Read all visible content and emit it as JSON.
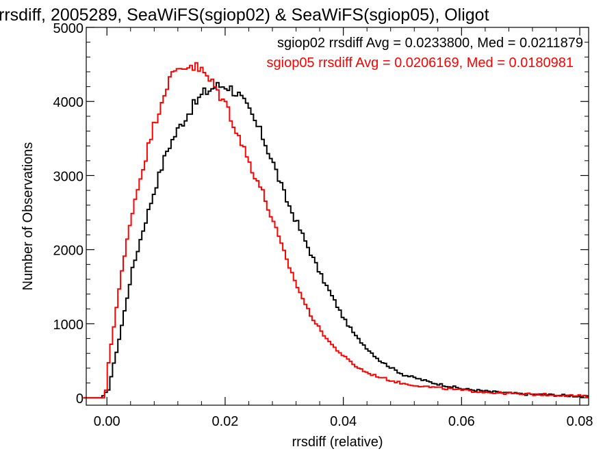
{
  "chart_data": {
    "type": "line",
    "title": "rrsdiff, 2005289, SeaWiFS(sgiop02) & SeaWiFS(sgiop05), Oligot",
    "xlabel": "rrsdiff (relative)",
    "ylabel": "Number of Observations",
    "xlim": [
      -0.0035,
      0.0815
    ],
    "ylim": [
      -100,
      5000
    ],
    "x_ticks": [
      0.0,
      0.02,
      0.04,
      0.06,
      0.08
    ],
    "x_tick_labels": [
      "0.00",
      "0.02",
      "0.04",
      "0.06",
      "0.08"
    ],
    "y_ticks": [
      0,
      1000,
      2000,
      3000,
      4000,
      5000
    ],
    "y_tick_labels": [
      "0",
      "1000",
      "2000",
      "3000",
      "4000",
      "5000"
    ],
    "legend_position": "top-right",
    "series": [
      {
        "name": "sgiop02 rrsdiff Avg = 0.0233800, Med = 0.0211879",
        "color": "#000000",
        "step": "histogram",
        "x": [
          -0.004,
          -0.001,
          0.0,
          0.002,
          0.004,
          0.006,
          0.008,
          0.01,
          0.012,
          0.014,
          0.016,
          0.018,
          0.02,
          0.022,
          0.024,
          0.026,
          0.028,
          0.03,
          0.032,
          0.034,
          0.036,
          0.038,
          0.04,
          0.042,
          0.044,
          0.046,
          0.048,
          0.05,
          0.055,
          0.06,
          0.065,
          0.07,
          0.075,
          0.08,
          0.0815
        ],
        "y": [
          0,
          0,
          100,
          850,
          1700,
          2300,
          2850,
          3350,
          3650,
          3900,
          4100,
          4200,
          4220,
          4100,
          3850,
          3550,
          3150,
          2700,
          2350,
          2000,
          1650,
          1350,
          1050,
          820,
          650,
          500,
          400,
          310,
          200,
          120,
          80,
          50,
          40,
          20,
          10
        ]
      },
      {
        "name": "sgiop05 rrsdiff Avg = 0.0206169, Med = 0.0180981",
        "color": "#ff0000",
        "step": "histogram",
        "x": [
          -0.004,
          -0.0005,
          0.0,
          0.002,
          0.004,
          0.006,
          0.008,
          0.01,
          0.012,
          0.014,
          0.016,
          0.018,
          0.02,
          0.022,
          0.024,
          0.026,
          0.028,
          0.03,
          0.032,
          0.034,
          0.036,
          0.038,
          0.04,
          0.042,
          0.044,
          0.046,
          0.048,
          0.05,
          0.055,
          0.06,
          0.065,
          0.07,
          0.075,
          0.08,
          0.0815
        ],
        "y": [
          0,
          0,
          450,
          1550,
          2500,
          3150,
          3750,
          4250,
          4450,
          4500,
          4400,
          4200,
          3950,
          3550,
          3150,
          2800,
          2350,
          1900,
          1500,
          1150,
          900,
          700,
          550,
          420,
          330,
          280,
          230,
          190,
          140,
          100,
          70,
          50,
          40,
          25,
          10
        ]
      }
    ]
  }
}
